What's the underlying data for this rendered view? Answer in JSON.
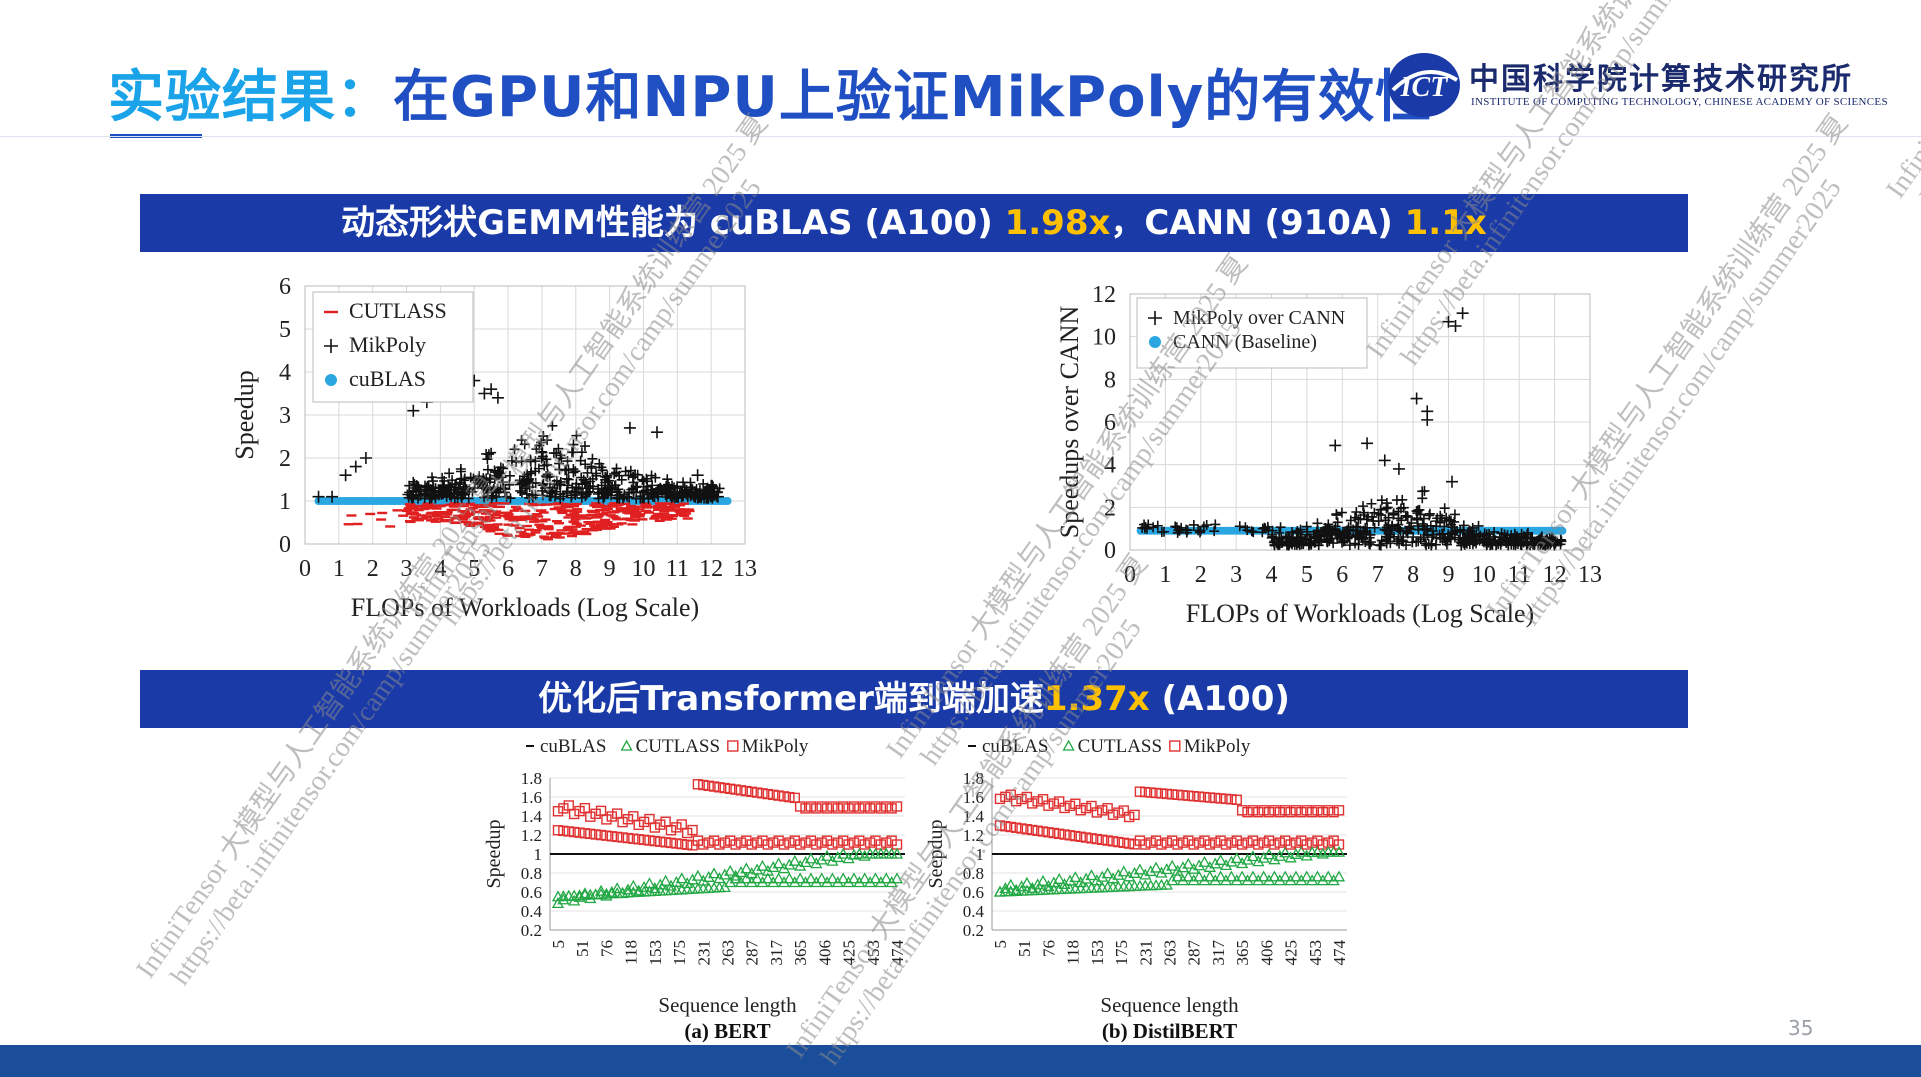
{
  "title": {
    "accent": "实验结果：",
    "main": "在GPU和NPU上验证MikPoly的有效性"
  },
  "logo": {
    "mark_text": "ICT",
    "cn_name": "中国科学院计算技术研究所",
    "en_name": "INSTITUTE OF COMPUTING TECHNOLOGY, CHINESE ACADEMY OF SCIENCES"
  },
  "banner1": {
    "prefix": "动态形状GEMM性能为 cuBLAS (A100) ",
    "val1": "1.98x",
    "mid": "，CANN (910A) ",
    "val2": "1.1x"
  },
  "banner2": {
    "prefix": "优化后Transformer端到端加速",
    "val": "1.37x",
    "suffix": " (A100)"
  },
  "page_number": "35",
  "watermark": {
    "line1": "InfiniTensor 大模型与人工智能系统训练营 2025 夏",
    "line2": "https://beta.infinitensor.com/camp/summer2025"
  },
  "colors": {
    "title": "#1f4fc2",
    "title_accent": "#1aa3e8",
    "banner": "#1a3aa8",
    "highlight": "#ffc000",
    "footer": "#1a4e9a"
  },
  "chart_data": [
    {
      "type": "scatter",
      "xlabel": "FLOPs of Workloads (Log Scale)",
      "ylabel": "Speedup",
      "xlim": [
        0,
        13
      ],
      "ylim": [
        0,
        6
      ],
      "xticks": [
        "0",
        "1",
        "2",
        "3",
        "4",
        "5",
        "6",
        "7",
        "8",
        "9",
        "10",
        "11",
        "12",
        "13"
      ],
      "yticks": [
        "0",
        "1",
        "2",
        "3",
        "4",
        "5",
        "6"
      ],
      "legend_position": "top-left",
      "series": [
        {
          "name": "CUTLASS",
          "marker": "dash",
          "color": "#e02020",
          "y_range_approx": [
            0.2,
            1.0
          ],
          "x_range_approx": [
            0.5,
            12.5
          ]
        },
        {
          "name": "MikPoly",
          "marker": "plus",
          "color": "#111111",
          "y_range_approx": [
            1.0,
            4.8
          ],
          "x_range_approx": [
            0.3,
            12.5
          ]
        },
        {
          "name": "cuBLAS",
          "marker": "dot",
          "color": "#2aa7e0",
          "y_value": 1.0,
          "x_range_approx": [
            0.3,
            12.5
          ]
        }
      ]
    },
    {
      "type": "scatter",
      "xlabel": "FLOPs of Workloads (Log Scale)",
      "ylabel": "Speedups over CANN",
      "xlim": [
        0,
        13
      ],
      "ylim": [
        0,
        12
      ],
      "xticks": [
        "0",
        "1",
        "2",
        "3",
        "4",
        "5",
        "6",
        "7",
        "8",
        "9",
        "10",
        "11",
        "12",
        "13"
      ],
      "yticks": [
        "0",
        "2",
        "4",
        "6",
        "8",
        "10",
        "12"
      ],
      "legend_position": "top-left",
      "series": [
        {
          "name": "MikPoly over CANN",
          "marker": "plus",
          "color": "#111111",
          "y_range_approx": [
            0.3,
            11.2
          ],
          "x_range_approx": [
            0.3,
            12.3
          ]
        },
        {
          "name": "CANN (Baseline)",
          "marker": "dot",
          "color": "#2aa7e0",
          "y_value": 1.0,
          "x_range_approx": [
            0.3,
            12.3
          ]
        }
      ]
    },
    {
      "type": "scatter",
      "caption": "(a) BERT",
      "xlabel": "Sequence length",
      "ylabel": "Speedup",
      "ylim": [
        0.2,
        1.8
      ],
      "yticks": [
        "0.2",
        "0.4",
        "0.6",
        "0.8",
        "1",
        "1.2",
        "1.4",
        "1.6",
        "1.8"
      ],
      "categories": [
        "5",
        "51",
        "76",
        "118",
        "153",
        "175",
        "231",
        "263",
        "287",
        "317",
        "365",
        "406",
        "425",
        "453",
        "474"
      ],
      "legend_position": "top",
      "series": [
        {
          "name": "cuBLAS",
          "marker": "line",
          "color": "#111111",
          "y_value": 1.0
        },
        {
          "name": "CUTLASS",
          "marker": "triangle",
          "color": "#22a844",
          "y_range_approx": [
            0.42,
            1.05
          ]
        },
        {
          "name": "MikPoly",
          "marker": "square",
          "color": "#e03030",
          "y_range_approx": [
            0.9,
            1.75
          ]
        }
      ]
    },
    {
      "type": "scatter",
      "caption": "(b) DistilBERT",
      "xlabel": "Sequence length",
      "ylabel": "Seepdup",
      "ylim": [
        0.2,
        1.8
      ],
      "yticks": [
        "0.2",
        "0.4",
        "0.6",
        "0.8",
        "1",
        "1.2",
        "1.4",
        "1.6",
        "1.8"
      ],
      "categories": [
        "5",
        "51",
        "76",
        "118",
        "153",
        "175",
        "231",
        "263",
        "287",
        "317",
        "365",
        "406",
        "425",
        "453",
        "474"
      ],
      "legend_position": "top",
      "series": [
        {
          "name": "cuBLAS",
          "marker": "line",
          "color": "#111111",
          "y_value": 1.0
        },
        {
          "name": "CUTLASS",
          "marker": "triangle",
          "color": "#22a844",
          "y_range_approx": [
            0.55,
            1.05
          ]
        },
        {
          "name": "MikPoly",
          "marker": "square",
          "color": "#e03030",
          "y_range_approx": [
            0.95,
            1.7
          ]
        }
      ]
    }
  ]
}
